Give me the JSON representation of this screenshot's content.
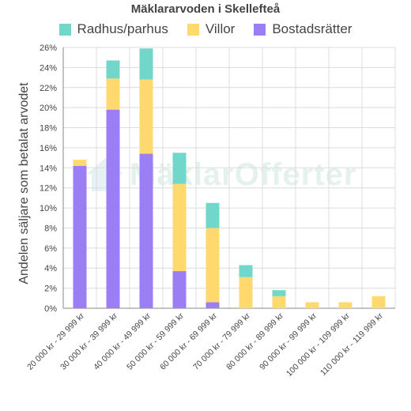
{
  "chart_data": {
    "type": "bar",
    "stacked": true,
    "title": "Mäklararvoden i Skellefteå",
    "ylabel": "Andelen säljare som betalat arvodet",
    "xlabel": "",
    "ylim": [
      0,
      26
    ],
    "y_tick_step": 2,
    "y_tick_suffix": "%",
    "grid": true,
    "legend_position": "top",
    "categories": [
      "20 000 kr - 29 999 kr",
      "30 000 kr - 39 999 kr",
      "40 000 kr - 49 999 kr",
      "50 000 kr - 59 999 kr",
      "60 000 kr - 69 999 kr",
      "70 000 kr - 79 999 kr",
      "80 000 kr - 89 999 kr",
      "90 000 kr - 99 999 kr",
      "100 000 kr - 109 999 kr",
      "110 000 kr - 119 999 kr"
    ],
    "series": [
      {
        "name": "Bostadsrätter",
        "color": "#9b7df4",
        "values": [
          14.2,
          19.8,
          15.4,
          3.7,
          0.6,
          0,
          0,
          0,
          0,
          0
        ]
      },
      {
        "name": "Villor",
        "color": "#ffd86e",
        "values": [
          0.6,
          3.1,
          7.4,
          8.7,
          7.4,
          3.1,
          1.2,
          0.6,
          0.6,
          1.2
        ]
      },
      {
        "name": "Radhus/parhus",
        "color": "#72d7cb",
        "values": [
          0,
          1.8,
          3.1,
          3.1,
          2.5,
          1.2,
          0.6,
          0,
          0,
          0
        ]
      }
    ],
    "legend_order": [
      "Radhus/parhus",
      "Villor",
      "Bostadsrätter"
    ]
  },
  "watermark": {
    "text": "MäklarOfferter",
    "icon": "house-logo-icon"
  }
}
